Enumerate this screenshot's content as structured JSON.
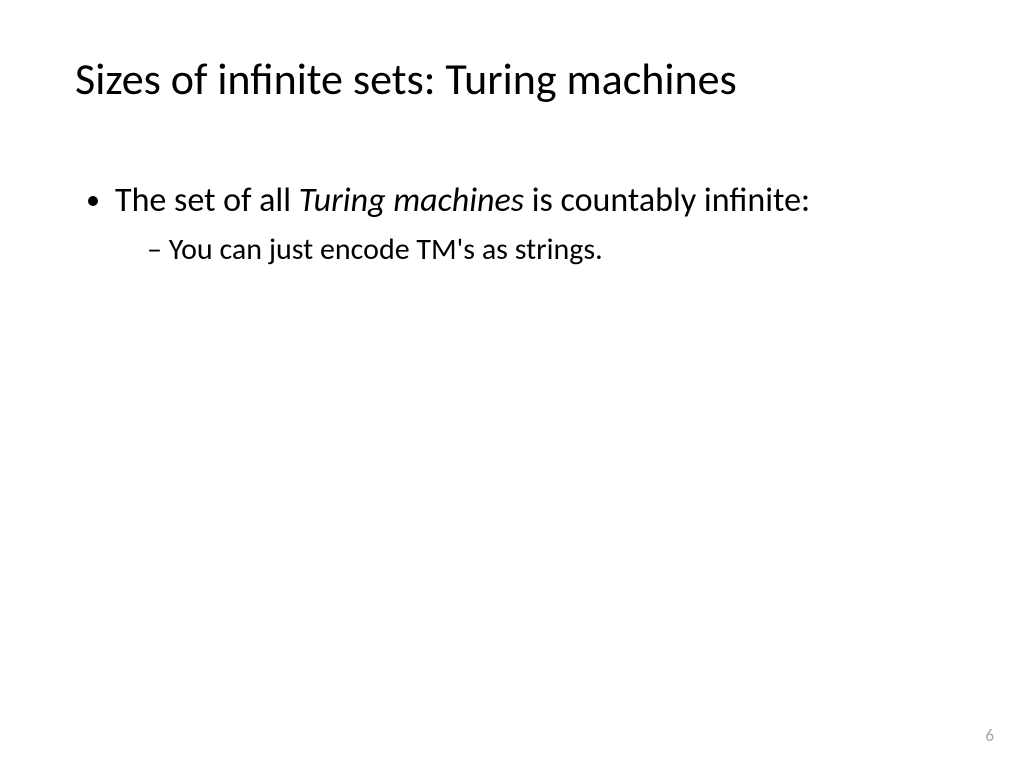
{
  "slide": {
    "title": "Sizes of infinite sets: Turing machines",
    "bullet1_pre": "The set of all ",
    "bullet1_em": "Turing machines",
    "bullet1_post": " is countably infinite:",
    "sub1": "You can just encode TM's as strings.",
    "page_number": "6",
    "background_color": "#ffffff",
    "text_color": "#000000",
    "pagenum_color": "#a6a6a6",
    "title_fontsize": 44,
    "body_fontsize": 34,
    "sub_fontsize": 30
  }
}
